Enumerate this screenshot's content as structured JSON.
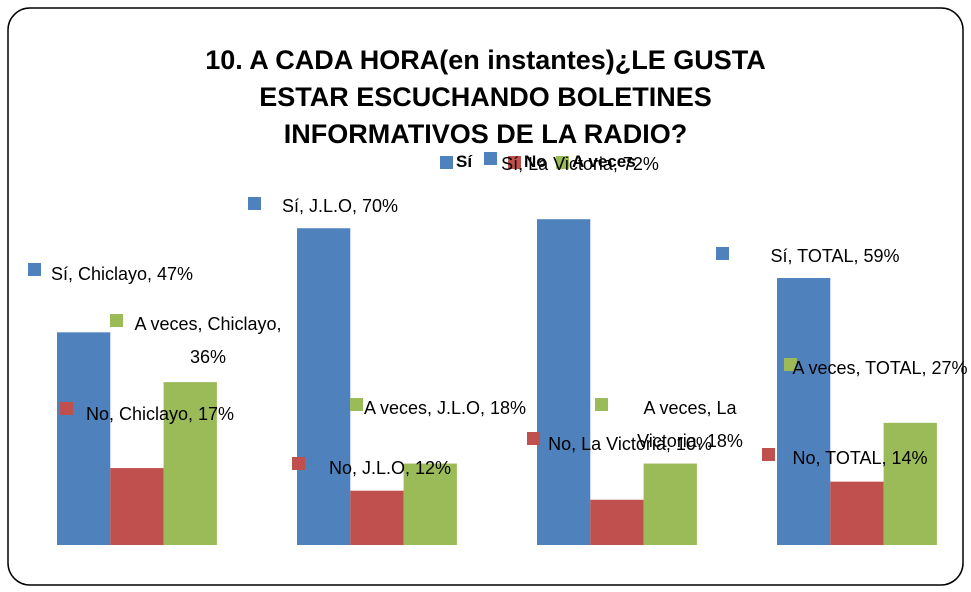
{
  "chart_data": {
    "type": "bar",
    "title": [
      "10. A CADA HORA(en instantes)¿LE GUSTA",
      "ESTAR ESCUCHANDO BOLETINES",
      "INFORMATIVOS DE LA RADIO?"
    ],
    "ylim": [
      0,
      80
    ],
    "series": [
      {
        "name": "Sí",
        "color": "#4f81bd",
        "values": [
          47,
          70,
          72,
          59
        ],
        "value_labels": [
          "Sí, Chiclayo, 47%",
          "Sí, J.L.O, 70%",
          "Sí, La Victoria, 72%",
          "Sí, TOTAL, 59%"
        ]
      },
      {
        "name": "No",
        "color": "#c0504d",
        "values": [
          17,
          12,
          10,
          14
        ],
        "value_labels": [
          "No, Chiclayo, 17%",
          "No, J.L.O, 12%",
          "No, La Victoria, 10%",
          "No, TOTAL, 14%"
        ]
      },
      {
        "name": "A veces",
        "color": "#9bbb59",
        "values": [
          36,
          18,
          18,
          27
        ],
        "value_labels": [
          "A veces, Chiclayo, 36%",
          "A veces, J.L.O, 18%",
          "A veces, La Victoria, 18%",
          "A veces, TOTAL, 27%"
        ]
      }
    ]
  }
}
